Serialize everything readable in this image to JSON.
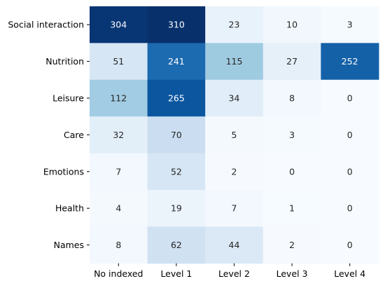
{
  "chart_data": {
    "type": "heatmap",
    "title": "",
    "xlabel": "",
    "ylabel": "",
    "rows": [
      "Social interaction",
      "Nutrition",
      "Leisure",
      "Care",
      "Emotions",
      "Health",
      "Names"
    ],
    "columns": [
      "No indexed",
      "Level 1",
      "Level 2",
      "Level 3",
      "Level 4"
    ],
    "values": [
      [
        304,
        310,
        23,
        10,
        3
      ],
      [
        51,
        241,
        115,
        27,
        252
      ],
      [
        112,
        265,
        34,
        8,
        0
      ],
      [
        32,
        70,
        5,
        3,
        0
      ],
      [
        7,
        52,
        2,
        0,
        0
      ],
      [
        4,
        19,
        7,
        1,
        0
      ],
      [
        8,
        62,
        44,
        2,
        0
      ]
    ],
    "colormap": "Blues",
    "value_range": [
      0,
      310
    ],
    "annotations": true,
    "colorbar": false,
    "grid": false
  }
}
